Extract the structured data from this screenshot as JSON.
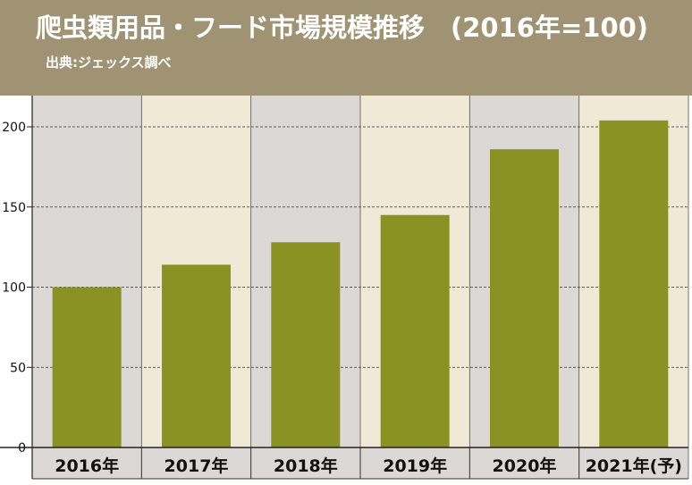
{
  "chart_data": {
    "type": "bar",
    "title": "爬虫類用品・フード市場規模推移　(2016年=100)",
    "subtitle": "出典:ジェックス調べ",
    "categories": [
      "2016年",
      "2017年",
      "2018年",
      "2019年",
      "2020年",
      "2021年(予)"
    ],
    "values": [
      100,
      114,
      128,
      145,
      186,
      204
    ],
    "ylim": [
      0,
      200
    ],
    "yticks": [
      0,
      50,
      100,
      150,
      200
    ],
    "grid": true,
    "legend": "none"
  },
  "colors": {
    "header": "#a09373",
    "bar": "#8a9224",
    "panel_gray": "#dcd8d5",
    "panel_cream": "#f0e9d6",
    "grid": "#333333"
  }
}
